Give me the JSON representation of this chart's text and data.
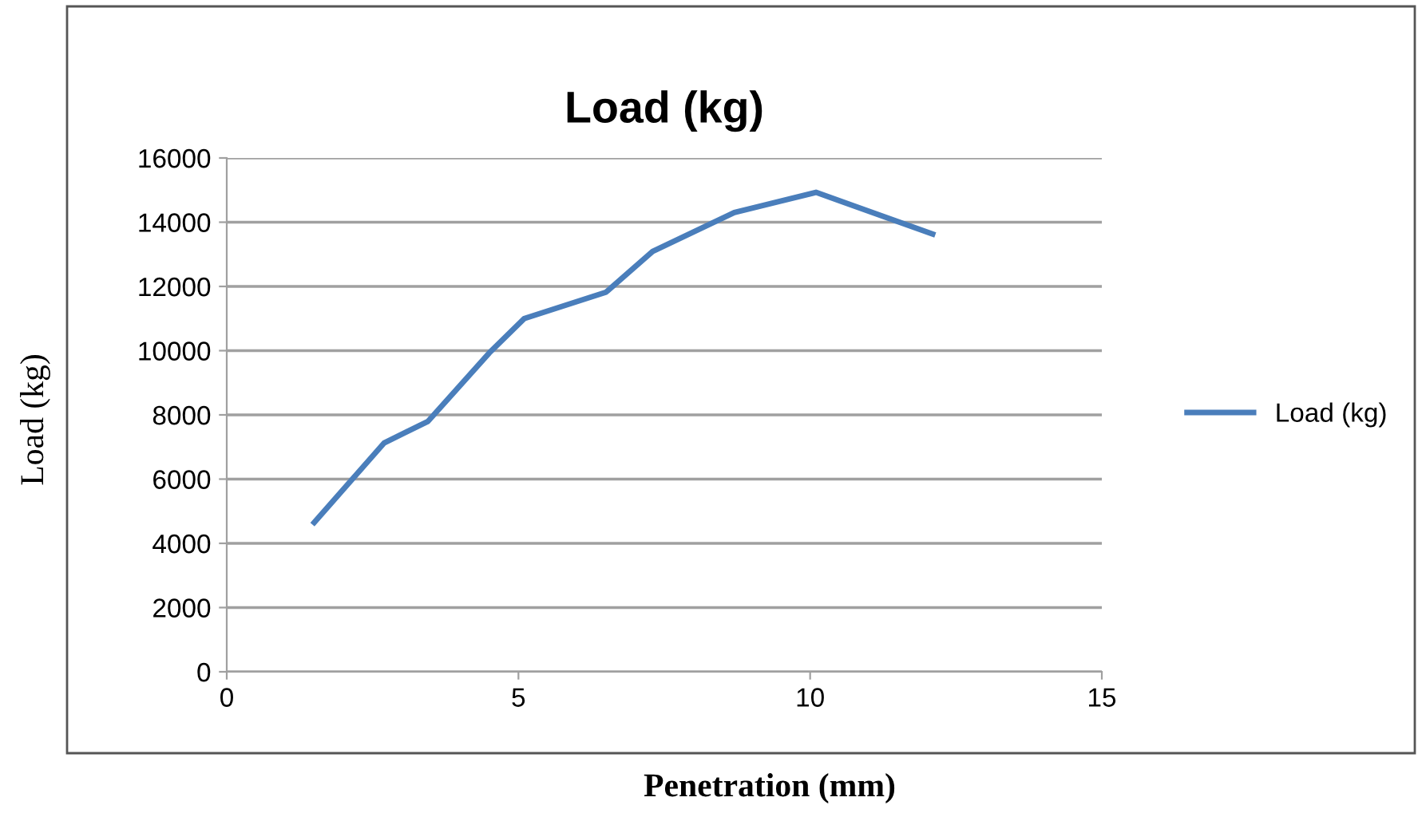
{
  "chart_data": {
    "type": "line",
    "title": "Load (kg)",
    "xlabel": "Penetration (mm)",
    "ylabel": "Load (kg)",
    "x": [
      1.5,
      2.7,
      3.45,
      4.5,
      5.1,
      6.5,
      7.3,
      8.7,
      10.1,
      12.1
    ],
    "series": [
      {
        "name": "Load (kg)",
        "color": "#4a7ebb",
        "values": [
          4650,
          7130,
          7800,
          9930,
          11000,
          11820,
          13090,
          14300,
          14930,
          13630
        ]
      }
    ],
    "xlim": [
      0,
      15
    ],
    "xticks": [
      0,
      5,
      10,
      15
    ],
    "ylim": [
      0,
      16000
    ],
    "yticks": [
      0,
      2000,
      4000,
      6000,
      8000,
      10000,
      12000,
      14000,
      16000
    ],
    "grid": "y",
    "legend": "right",
    "marker": "none",
    "line_style": "solid"
  }
}
